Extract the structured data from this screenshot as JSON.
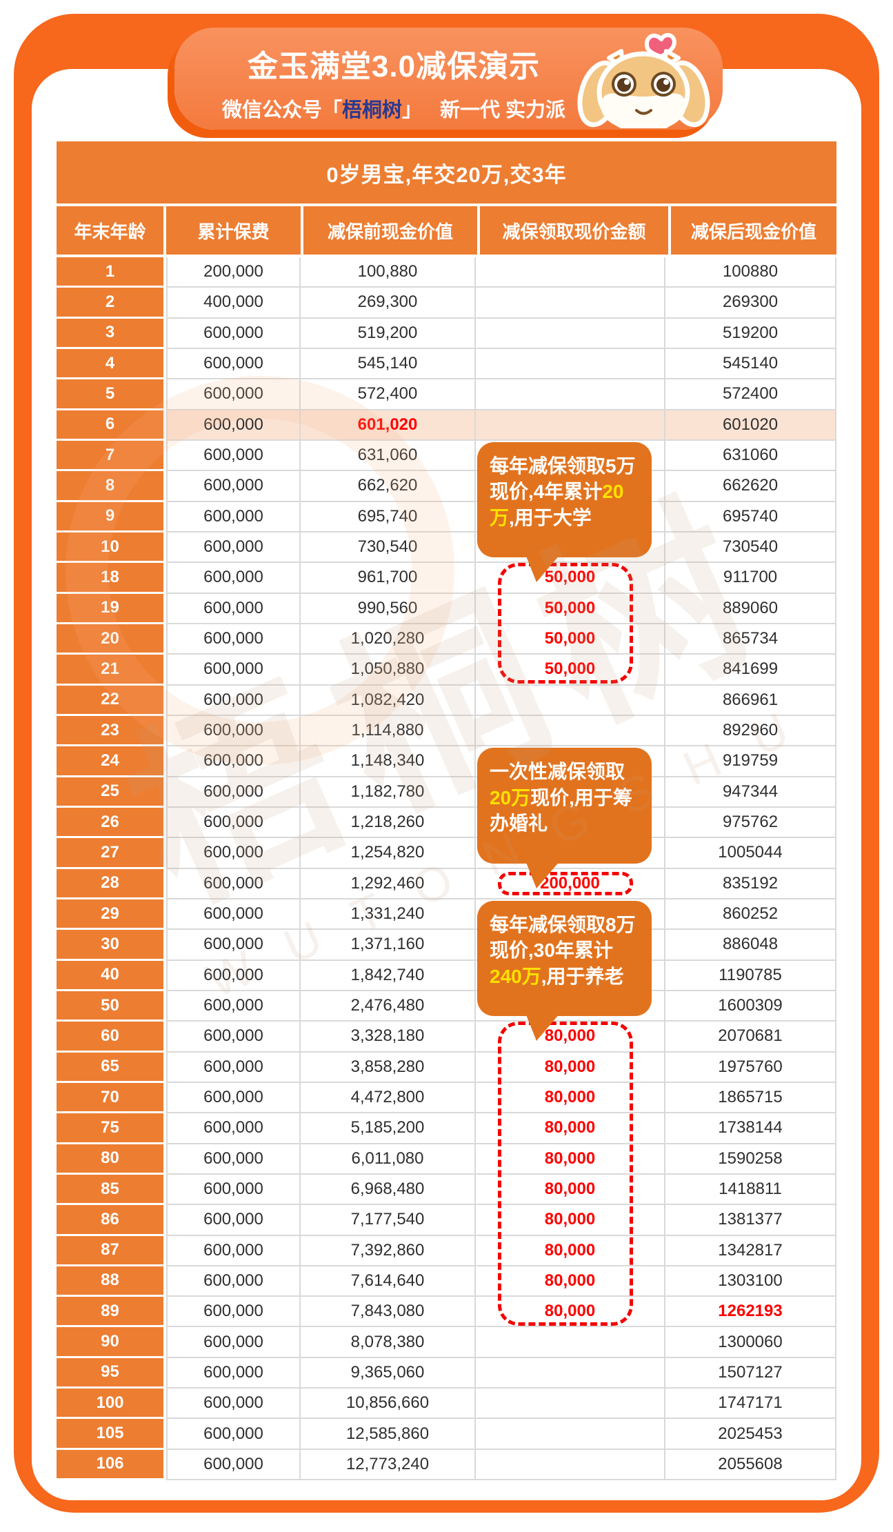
{
  "banner": {
    "title": "金玉满堂3.0减保演示",
    "subtitle_prefix": "微信公众号",
    "bracket_open": "「",
    "brand": "梧桐树",
    "bracket_close": "」",
    "subtitle_suffix": "新一代 实力派",
    "mascot_icon": "cow-mascot-with-heart-icon"
  },
  "subject_bar": "0岁男宝,年交20万,交3年",
  "table": {
    "columns": [
      "年末年龄",
      "累计保费",
      "减保前现金价值",
      "减保领取现价金额",
      "减保后现金价值"
    ],
    "rows": [
      {
        "age": "1",
        "premium": "200,000",
        "before": "100,880",
        "draw": "",
        "after": "100880"
      },
      {
        "age": "2",
        "premium": "400,000",
        "before": "269,300",
        "draw": "",
        "after": "269300"
      },
      {
        "age": "3",
        "premium": "600,000",
        "before": "519,200",
        "draw": "",
        "after": "519200"
      },
      {
        "age": "4",
        "premium": "600,000",
        "before": "545,140",
        "draw": "",
        "after": "545140"
      },
      {
        "age": "5",
        "premium": "600,000",
        "before": "572,400",
        "draw": "",
        "after": "572400"
      },
      {
        "age": "6",
        "premium": "600,000",
        "before": "601,020",
        "draw": "",
        "after": "601020",
        "hl": true,
        "before_red": true
      },
      {
        "age": "7",
        "premium": "600,000",
        "before": "631,060",
        "draw": "",
        "after": "631060"
      },
      {
        "age": "8",
        "premium": "600,000",
        "before": "662,620",
        "draw": "",
        "after": "662620"
      },
      {
        "age": "9",
        "premium": "600,000",
        "before": "695,740",
        "draw": "",
        "after": "695740"
      },
      {
        "age": "10",
        "premium": "600,000",
        "before": "730,540",
        "draw": "",
        "after": "730540"
      },
      {
        "age": "18",
        "premium": "600,000",
        "before": "961,700",
        "draw": "50,000",
        "after": "911700"
      },
      {
        "age": "19",
        "premium": "600,000",
        "before": "990,560",
        "draw": "50,000",
        "after": "889060"
      },
      {
        "age": "20",
        "premium": "600,000",
        "before": "1,020,280",
        "draw": "50,000",
        "after": "865734"
      },
      {
        "age": "21",
        "premium": "600,000",
        "before": "1,050,880",
        "draw": "50,000",
        "after": "841699"
      },
      {
        "age": "22",
        "premium": "600,000",
        "before": "1,082,420",
        "draw": "",
        "after": "866961"
      },
      {
        "age": "23",
        "premium": "600,000",
        "before": "1,114,880",
        "draw": "",
        "after": "892960"
      },
      {
        "age": "24",
        "premium": "600,000",
        "before": "1,148,340",
        "draw": "",
        "after": "919759"
      },
      {
        "age": "25",
        "premium": "600,000",
        "before": "1,182,780",
        "draw": "",
        "after": "947344"
      },
      {
        "age": "26",
        "premium": "600,000",
        "before": "1,218,260",
        "draw": "",
        "after": "975762"
      },
      {
        "age": "27",
        "premium": "600,000",
        "before": "1,254,820",
        "draw": "",
        "after": "1005044"
      },
      {
        "age": "28",
        "premium": "600,000",
        "before": "1,292,460",
        "draw": "200,000",
        "after": "835192"
      },
      {
        "age": "29",
        "premium": "600,000",
        "before": "1,331,240",
        "draw": "",
        "after": "860252"
      },
      {
        "age": "30",
        "premium": "600,000",
        "before": "1,371,160",
        "draw": "",
        "after": "886048"
      },
      {
        "age": "40",
        "premium": "600,000",
        "before": "1,842,740",
        "draw": "",
        "after": "1190785"
      },
      {
        "age": "50",
        "premium": "600,000",
        "before": "2,476,480",
        "draw": "",
        "after": "1600309"
      },
      {
        "age": "60",
        "premium": "600,000",
        "before": "3,328,180",
        "draw": "80,000",
        "after": "2070681"
      },
      {
        "age": "65",
        "premium": "600,000",
        "before": "3,858,280",
        "draw": "80,000",
        "after": "1975760"
      },
      {
        "age": "70",
        "premium": "600,000",
        "before": "4,472,800",
        "draw": "80,000",
        "after": "1865715"
      },
      {
        "age": "75",
        "premium": "600,000",
        "before": "5,185,200",
        "draw": "80,000",
        "after": "1738144"
      },
      {
        "age": "80",
        "premium": "600,000",
        "before": "6,011,080",
        "draw": "80,000",
        "after": "1590258"
      },
      {
        "age": "85",
        "premium": "600,000",
        "before": "6,968,480",
        "draw": "80,000",
        "after": "1418811"
      },
      {
        "age": "86",
        "premium": "600,000",
        "before": "7,177,540",
        "draw": "80,000",
        "after": "1381377"
      },
      {
        "age": "87",
        "premium": "600,000",
        "before": "7,392,860",
        "draw": "80,000",
        "after": "1342817"
      },
      {
        "age": "88",
        "premium": "600,000",
        "before": "7,614,640",
        "draw": "80,000",
        "after": "1303100"
      },
      {
        "age": "89",
        "premium": "600,000",
        "before": "7,843,080",
        "draw": "80,000",
        "after": "1262193",
        "after_red": true
      },
      {
        "age": "90",
        "premium": "600,000",
        "before": "8,078,380",
        "draw": "",
        "after": "1300060"
      },
      {
        "age": "95",
        "premium": "600,000",
        "before": "9,365,060",
        "draw": "",
        "after": "1507127"
      },
      {
        "age": "100",
        "premium": "600,000",
        "before": "10,856,660",
        "draw": "",
        "after": "1747171"
      },
      {
        "age": "105",
        "premium": "600,000",
        "before": "12,585,860",
        "draw": "",
        "after": "2025453"
      },
      {
        "age": "106",
        "premium": "600,000",
        "before": "12,773,240",
        "draw": "",
        "after": "2055608"
      }
    ]
  },
  "withdraw_boxes": [
    {
      "from": "18",
      "to": "21"
    },
    {
      "from": "28",
      "to": "28"
    },
    {
      "from": "60",
      "to": "89"
    }
  ],
  "callouts": [
    {
      "before": "每年减保领取5万现价,4年累计",
      "highlight": "20万",
      "after": ",用于大学",
      "anchor_from": "7",
      "anchor_to": "10"
    },
    {
      "before": "一次性减保领取",
      "highlight": "20万",
      "after": "现价,用于筹办婚礼",
      "anchor_from": "24",
      "anchor_to": "27"
    },
    {
      "before": "每年减保领取8万现价,30年累计",
      "highlight": "240万",
      "after": ",用于养老",
      "anchor_from": "29",
      "anchor_to": "50"
    }
  ],
  "watermark": {
    "cn": "梧桐树",
    "en": "WUTONGSHU"
  },
  "colors": {
    "frame_orange": "#f7671c",
    "table_orange": "#ed7d31",
    "banner_orange": "#f58350",
    "callout_orange": "#e2731e",
    "highlight_row": "#fbe3d4",
    "red": "#fe0000",
    "yellow": "#ffe100",
    "brand_blue": "#2b3990",
    "grid_gray": "#d9d9d9"
  }
}
